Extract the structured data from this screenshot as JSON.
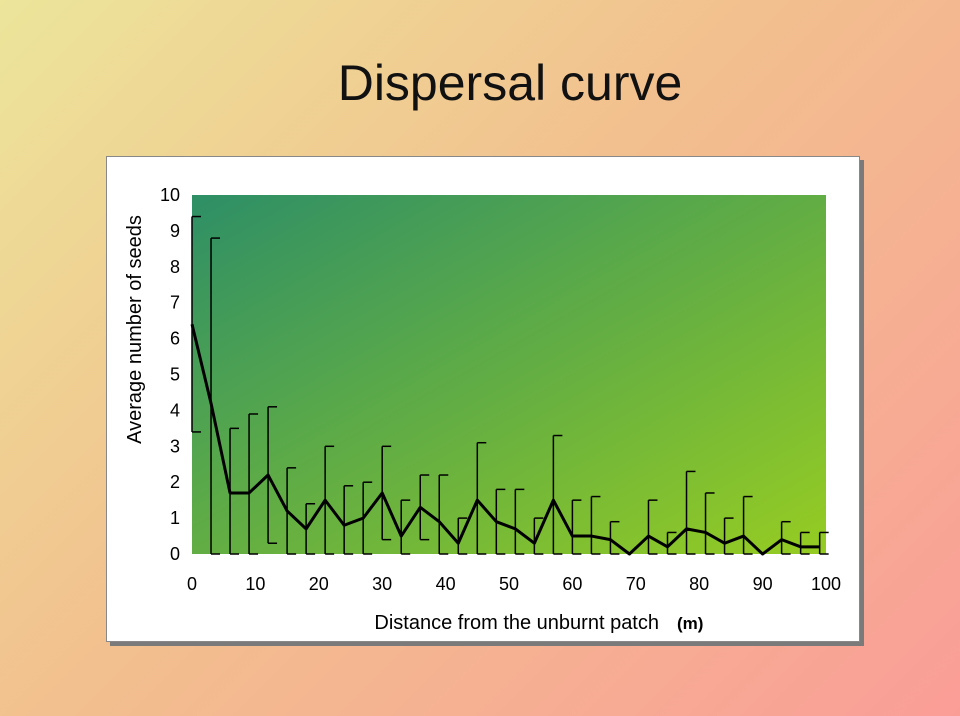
{
  "slide": {
    "title": "Dispersal curve"
  },
  "chart_data": {
    "type": "line",
    "title": "",
    "xlabel": "Distance from the unburnt patch",
    "xlabel_unit": "(m)",
    "ylabel": "Average number of seeds",
    "xlim": [
      0,
      100
    ],
    "ylim": [
      0,
      10
    ],
    "x_ticks": [
      0,
      10,
      20,
      30,
      40,
      50,
      60,
      70,
      80,
      90,
      100
    ],
    "y_ticks": [
      0,
      1,
      2,
      3,
      4,
      5,
      6,
      7,
      8,
      9,
      10
    ],
    "grid": false,
    "colors": {
      "line": "#000000",
      "plot_bg_start": "#2e8f66",
      "plot_bg_end": "#96cc22"
    },
    "series": [
      {
        "x": [
          0,
          3,
          6,
          9,
          12,
          15,
          18,
          21,
          24,
          27,
          30,
          33,
          36,
          39,
          42,
          45,
          48,
          51,
          54,
          57,
          60,
          63,
          66,
          69,
          72,
          75,
          78,
          81,
          84,
          87,
          90,
          93,
          96,
          99
        ],
        "y": [
          6.4,
          4.2,
          1.7,
          1.7,
          2.2,
          1.2,
          0.7,
          1.5,
          0.8,
          1.0,
          1.7,
          0.5,
          1.3,
          0.9,
          0.3,
          1.5,
          0.9,
          0.7,
          0.3,
          1.5,
          0.5,
          0.5,
          0.4,
          0.0,
          0.5,
          0.2,
          0.7,
          0.6,
          0.3,
          0.5,
          0.0,
          0.4,
          0.2,
          0.2
        ],
        "error": [
          3.0,
          4.6,
          1.8,
          2.2,
          1.9,
          1.2,
          0.7,
          1.5,
          1.1,
          1.0,
          1.3,
          1.0,
          0.9,
          1.3,
          0.7,
          1.6,
          0.9,
          1.1,
          0.7,
          1.8,
          1.0,
          1.1,
          0.5,
          0.0,
          1.0,
          0.4,
          1.6,
          1.1,
          0.7,
          1.1,
          0.0,
          0.5,
          0.4,
          0.4
        ]
      }
    ]
  }
}
